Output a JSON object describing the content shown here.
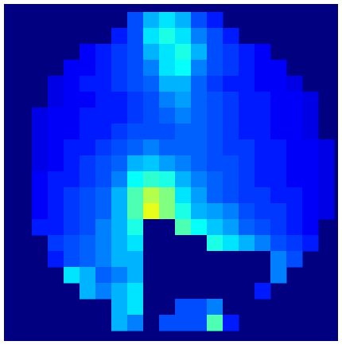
{
  "chart_data": {
    "type": "heatmap",
    "colormap": "jet",
    "zlim": [
      0,
      1
    ],
    "values": [
      [
        null,
        null,
        null,
        null,
        null,
        null,
        null,
        0.2,
        0.3,
        0.35,
        0.3,
        0.2,
        0.15,
        null,
        null,
        null,
        null,
        null,
        null,
        null
      ],
      [
        null,
        null,
        null,
        null,
        null,
        null,
        0.15,
        0.2,
        0.35,
        0.4,
        0.35,
        0.25,
        0.2,
        0.15,
        null,
        null,
        null,
        null,
        null,
        null
      ],
      [
        null,
        null,
        null,
        null,
        0.12,
        0.15,
        0.18,
        0.2,
        0.3,
        0.35,
        0.4,
        0.3,
        0.2,
        0.18,
        0.15,
        0.12,
        null,
        null,
        null,
        null
      ],
      [
        null,
        null,
        null,
        0.12,
        0.12,
        0.15,
        0.18,
        0.2,
        0.25,
        0.35,
        0.38,
        0.25,
        0.2,
        0.18,
        0.15,
        0.12,
        0.12,
        null,
        null,
        null
      ],
      [
        null,
        null,
        0.1,
        0.12,
        0.15,
        0.15,
        0.18,
        0.2,
        0.22,
        0.3,
        0.3,
        0.22,
        0.18,
        0.15,
        0.15,
        0.12,
        0.12,
        0.1,
        null,
        null
      ],
      [
        null,
        null,
        0.1,
        0.12,
        0.12,
        0.15,
        0.15,
        0.18,
        0.2,
        0.25,
        0.28,
        0.22,
        0.2,
        0.18,
        0.15,
        0.15,
        0.12,
        0.12,
        0.1,
        null
      ],
      [
        null,
        0.1,
        0.12,
        0.12,
        0.15,
        0.15,
        0.15,
        0.18,
        0.2,
        0.22,
        0.25,
        0.22,
        0.2,
        0.18,
        0.15,
        0.15,
        0.12,
        0.12,
        0.1,
        null
      ],
      [
        null,
        0.1,
        0.12,
        0.12,
        0.15,
        0.15,
        0.18,
        0.2,
        0.2,
        0.2,
        0.22,
        0.22,
        0.2,
        0.18,
        0.15,
        0.15,
        0.12,
        0.12,
        0.1,
        null
      ],
      [
        null,
        0.1,
        0.12,
        0.15,
        0.15,
        0.18,
        0.2,
        0.22,
        0.25,
        0.22,
        0.22,
        0.22,
        0.2,
        0.18,
        0.18,
        0.15,
        0.15,
        0.12,
        0.12,
        0.1
      ],
      [
        null,
        0.1,
        0.12,
        0.15,
        0.18,
        0.2,
        0.22,
        0.3,
        0.32,
        0.28,
        0.25,
        0.22,
        0.2,
        0.2,
        0.18,
        0.15,
        0.15,
        0.12,
        0.12,
        0.1
      ],
      [
        null,
        0.12,
        0.15,
        0.15,
        0.18,
        0.2,
        0.25,
        0.38,
        0.42,
        0.4,
        0.3,
        0.25,
        0.22,
        0.2,
        0.18,
        0.15,
        0.15,
        0.12,
        0.12,
        0.1
      ],
      [
        null,
        0.12,
        0.15,
        0.18,
        0.2,
        0.22,
        0.3,
        0.45,
        0.55,
        0.5,
        0.35,
        0.28,
        0.22,
        0.2,
        0.18,
        0.18,
        0.15,
        0.15,
        0.12,
        0.1
      ],
      [
        null,
        0.12,
        0.15,
        0.18,
        0.2,
        0.22,
        0.3,
        0.45,
        0.6,
        0.5,
        0.4,
        0.3,
        0.28,
        0.25,
        0.2,
        0.18,
        0.18,
        0.15,
        0.12,
        0.1
      ],
      [
        null,
        0.15,
        0.15,
        0.18,
        0.2,
        0.25,
        0.3,
        0.4,
        0,
        0,
        0.45,
        0.38,
        0.32,
        0.28,
        0.22,
        0.2,
        0.18,
        0.15,
        0.12,
        null
      ],
      [
        null,
        null,
        0.18,
        0.2,
        0.22,
        0.25,
        0.3,
        0.35,
        0,
        0,
        0,
        0,
        0.4,
        0.35,
        0.3,
        0.25,
        0.2,
        0.18,
        0.15,
        null
      ],
      [
        null,
        null,
        0.15,
        0.2,
        0.22,
        0.25,
        0.3,
        0.3,
        0,
        0,
        0,
        0,
        0,
        0,
        0,
        0,
        0.25,
        0.2,
        null,
        null
      ],
      [
        null,
        null,
        null,
        0.35,
        0.3,
        0.22,
        0.25,
        0.3,
        0,
        0,
        0,
        0,
        0,
        0,
        0,
        0,
        0.25,
        null,
        null,
        null
      ],
      [
        null,
        null,
        null,
        null,
        0.3,
        0.25,
        0.3,
        0.35,
        0,
        0,
        0,
        0,
        0,
        0,
        0,
        0.15,
        null,
        null,
        null,
        null
      ],
      [
        null,
        null,
        null,
        null,
        null,
        null,
        0.3,
        0.35,
        0,
        0,
        0.2,
        0.2,
        0.25,
        0,
        0,
        null,
        null,
        null,
        null,
        null
      ],
      [
        null,
        null,
        null,
        null,
        null,
        null,
        0.3,
        0.25,
        0,
        0.2,
        0.2,
        0.2,
        0.45,
        0.15,
        null,
        null,
        null,
        null,
        null,
        null
      ]
    ]
  }
}
